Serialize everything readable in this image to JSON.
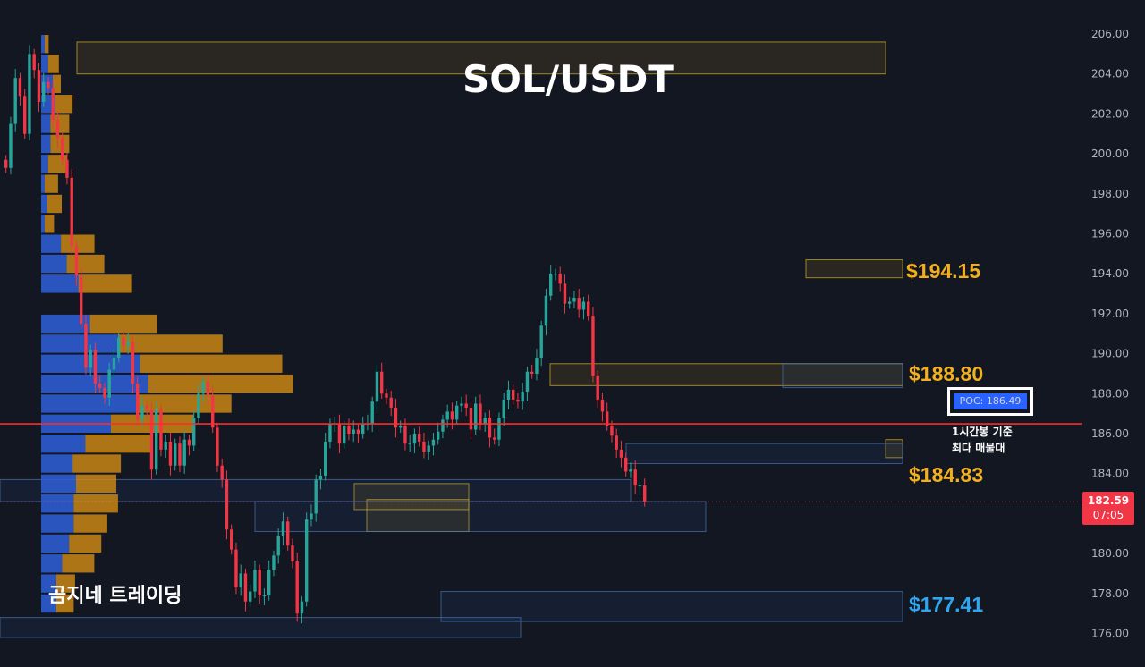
{
  "title": "SOL/USDT",
  "brand_text": "곰지네 트레이딩",
  "colors": {
    "background": "#131722",
    "up": "#26a69a",
    "down": "#f23645",
    "poc_line": "#ff2b2b",
    "level_yellow": "#f2b01e",
    "level_blue": "#2ea7f2",
    "volume_blue": "#2f5fd4",
    "volume_orange": "#d89012"
  },
  "price_axis": {
    "ticks": [
      "206.00",
      "204.00",
      "202.00",
      "200.00",
      "198.00",
      "196.00",
      "194.00",
      "192.00",
      "190.00",
      "188.00",
      "186.00",
      "184.00",
      "182.00",
      "180.00",
      "178.00",
      "176.00"
    ]
  },
  "current_price": {
    "price": "182.59",
    "countdown": "07:05"
  },
  "levels": [
    {
      "id": "lvl-194",
      "label": "$194.15",
      "color": "#f2b01e"
    },
    {
      "id": "lvl-188",
      "label": "$188.80",
      "color": "#f2b01e"
    },
    {
      "id": "lvl-184",
      "label": "$184.83",
      "color": "#f2b01e"
    },
    {
      "id": "lvl-177",
      "label": "$177.41",
      "color": "#2ea7f2"
    }
  ],
  "poc": {
    "label": "POC: 186.49",
    "value": 186.49,
    "note_line1": "1시간봉 기준",
    "note_line2": "최다 매물대"
  },
  "chart_data": {
    "type": "candlestick",
    "title": "SOL/USDT",
    "ylim": [
      175.3,
      207.0
    ],
    "grid": false,
    "close": [
      199.3,
      201.5,
      203.8,
      202.9,
      201.0,
      205.0,
      204.2,
      202.6,
      203.6,
      203.3,
      201.7,
      200.8,
      199.7,
      198.8,
      195.4,
      193.9,
      191.5,
      189.3,
      190.2,
      188.5,
      188.3,
      187.8,
      189.2,
      189.8,
      190.8,
      190.4,
      190.6,
      188.5,
      186.7,
      187.4,
      187.2,
      184.2,
      187.2,
      185.2,
      185.6,
      184.4,
      185.5,
      184.4,
      185.7,
      185.4,
      186.8,
      188.0,
      188.6,
      187.9,
      186.3,
      184.4,
      183.7,
      181.2,
      180.2,
      178.3,
      179.0,
      177.6,
      178.1,
      179.2,
      177.9,
      177.9,
      179.2,
      179.9,
      180.9,
      181.6,
      180.4,
      179.6,
      177.0,
      177.6,
      181.7,
      182.0,
      183.7,
      183.9,
      185.6,
      186.5,
      186.5,
      185.5,
      186.4,
      186.0,
      186.2,
      186.0,
      186.5,
      186.5,
      187.6,
      189.1,
      188.0,
      187.8,
      187.3,
      186.3,
      186.4,
      185.5,
      185.5,
      186.0,
      185.6,
      185.1,
      185.4,
      185.7,
      186.1,
      186.7,
      187.1,
      186.7,
      187.4,
      187.5,
      187.3,
      186.2,
      187.5,
      186.5,
      186.8,
      185.8,
      185.7,
      186.8,
      187.7,
      188.2,
      187.7,
      187.6,
      188.1,
      189.1,
      189.0,
      189.8,
      191.4,
      192.9,
      194.0,
      194.0,
      193.5,
      192.5,
      192.6,
      192.8,
      192.2,
      192.6,
      191.9,
      188.9,
      187.7,
      187.1,
      186.4,
      185.9,
      185.2,
      184.8,
      184.1,
      184.2,
      183.4,
      183.4,
      182.6
    ],
    "overlay_text": [
      "$194.15",
      "$188.80",
      "$184.83",
      "$177.41",
      "POC: 186.49"
    ],
    "series": [
      {
        "name": "POC: 186.49",
        "type": "hline",
        "value": 186.49
      },
      {
        "name": "$194.15",
        "type": "level",
        "value": 194.15
      },
      {
        "name": "$188.80",
        "type": "level",
        "value": 188.8
      },
      {
        "name": "$184.83",
        "type": "level",
        "value": 184.83
      },
      {
        "name": "$177.41",
        "type": "level",
        "value": 177.41
      }
    ],
    "zones": [
      {
        "type": "yellow",
        "from": 204.0,
        "to": 205.6
      },
      {
        "type": "yellow",
        "from": 188.4,
        "to": 189.5
      },
      {
        "type": "blue",
        "from": 188.3,
        "to": 189.5
      },
      {
        "type": "yellow",
        "from": 193.8,
        "to": 194.7
      },
      {
        "type": "yellow",
        "from": 184.8,
        "to": 185.7
      },
      {
        "type": "blue",
        "from": 184.5,
        "to": 185.5
      },
      {
        "type": "yellow",
        "from": 182.2,
        "to": 183.5
      },
      {
        "type": "blue",
        "from": 182.6,
        "to": 183.7
      },
      {
        "type": "yellow",
        "from": 181.1,
        "to": 182.7
      },
      {
        "type": "blue",
        "from": 181.1,
        "to": 182.6
      },
      {
        "type": "blue",
        "from": 176.6,
        "to": 178.1
      },
      {
        "type": "blue",
        "from": 175.8,
        "to": 176.8
      }
    ],
    "volume_profile": [
      {
        "low": 205.0,
        "high": 206.0,
        "buy": 3,
        "sell": 3
      },
      {
        "low": 204.0,
        "high": 205.0,
        "buy": 6,
        "sell": 8
      },
      {
        "low": 203.0,
        "high": 204.0,
        "buy": 10,
        "sell": 6
      },
      {
        "low": 202.0,
        "high": 203.0,
        "buy": 12,
        "sell": 13
      },
      {
        "low": 201.0,
        "high": 202.0,
        "buy": 8,
        "sell": 14
      },
      {
        "low": 200.0,
        "high": 201.0,
        "buy": 8,
        "sell": 14
      },
      {
        "low": 199.0,
        "high": 200.0,
        "buy": 6,
        "sell": 14
      },
      {
        "low": 198.0,
        "high": 199.0,
        "buy": 3,
        "sell": 10
      },
      {
        "low": 197.0,
        "high": 198.0,
        "buy": 5,
        "sell": 11
      },
      {
        "low": 196.0,
        "high": 197.0,
        "buy": 3,
        "sell": 7
      },
      {
        "low": 195.0,
        "high": 196.0,
        "buy": 17,
        "sell": 25
      },
      {
        "low": 194.0,
        "high": 195.0,
        "buy": 22,
        "sell": 28
      },
      {
        "low": 193.0,
        "high": 194.0,
        "buy": 32,
        "sell": 40
      },
      {
        "low": 191.0,
        "high": 192.0,
        "buy": 42,
        "sell": 50
      },
      {
        "low": 190.0,
        "high": 191.0,
        "buy": 66,
        "sell": 78
      },
      {
        "low": 189.0,
        "high": 190.0,
        "buy": 85,
        "sell": 106
      },
      {
        "low": 188.0,
        "high": 189.0,
        "buy": 92,
        "sell": 108
      },
      {
        "low": 187.0,
        "high": 188.0,
        "buy": 84,
        "sell": 69
      },
      {
        "low": 186.0,
        "high": 187.0,
        "buy": 60,
        "sell": 62
      },
      {
        "low": 185.0,
        "high": 186.0,
        "buy": 38,
        "sell": 50
      },
      {
        "low": 184.0,
        "high": 185.0,
        "buy": 27,
        "sell": 36
      },
      {
        "low": 183.0,
        "high": 184.0,
        "buy": 30,
        "sell": 30
      },
      {
        "low": 182.0,
        "high": 183.0,
        "buy": 28,
        "sell": 33
      },
      {
        "low": 181.0,
        "high": 182.0,
        "buy": 28,
        "sell": 25
      },
      {
        "low": 180.0,
        "high": 181.0,
        "buy": 24,
        "sell": 24
      },
      {
        "low": 179.0,
        "high": 180.0,
        "buy": 18,
        "sell": 24
      },
      {
        "low": 178.0,
        "high": 179.0,
        "buy": 13,
        "sell": 14
      },
      {
        "low": 177.0,
        "high": 178.0,
        "buy": 13,
        "sell": 13
      }
    ]
  }
}
